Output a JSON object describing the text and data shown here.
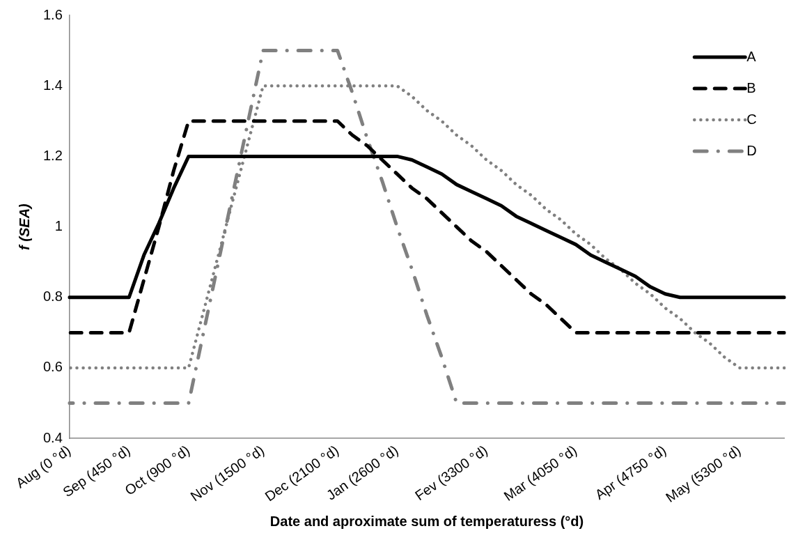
{
  "chart_data": {
    "type": "line",
    "xlabel": "Date and aproximate sum of temperaturess (°d)",
    "ylabel": "f (SEA)",
    "categories": [
      "Aug (0 °d)",
      null,
      null,
      null,
      "Sep (450 °d)",
      null,
      null,
      null,
      "Oct (900 °d)",
      null,
      null,
      null,
      null,
      "Nov (1500 °d)",
      null,
      null,
      null,
      null,
      "Dec (2100 °d)",
      null,
      null,
      null,
      "Jan (2600 °d)",
      null,
      null,
      null,
      null,
      null,
      "Fev (3300 °d)",
      null,
      null,
      null,
      null,
      null,
      "Mar (4050 °d)",
      null,
      null,
      null,
      null,
      null,
      "Apr (4750 °d)",
      null,
      null,
      null,
      null,
      "May (5300 °d)",
      null,
      null,
      null
    ],
    "series": [
      {
        "name": "A",
        "color": "#000000",
        "line_style": "solid",
        "values": [
          0.8,
          0.8,
          0.8,
          0.8,
          0.8,
          0.92,
          1.01,
          1.11,
          1.2,
          1.2,
          1.2,
          1.2,
          1.2,
          1.2,
          1.2,
          1.2,
          1.2,
          1.2,
          1.2,
          1.2,
          1.2,
          1.2,
          1.2,
          1.19,
          1.17,
          1.15,
          1.12,
          1.1,
          1.08,
          1.06,
          1.03,
          1.01,
          0.99,
          0.97,
          0.95,
          0.92,
          0.9,
          0.88,
          0.86,
          0.83,
          0.81,
          0.8,
          0.8,
          0.8,
          0.8,
          0.8,
          0.8,
          0.8,
          0.8
        ]
      },
      {
        "name": "B",
        "color": "#000000",
        "line_style": "dashed",
        "values": [
          0.7,
          0.7,
          0.7,
          0.7,
          0.7,
          0.85,
          1.0,
          1.16,
          1.3,
          1.3,
          1.3,
          1.3,
          1.3,
          1.3,
          1.3,
          1.3,
          1.3,
          1.3,
          1.3,
          1.26,
          1.23,
          1.19,
          1.15,
          1.11,
          1.08,
          1.04,
          1.0,
          0.96,
          0.93,
          0.89,
          0.85,
          0.81,
          0.78,
          0.74,
          0.7,
          0.7,
          0.7,
          0.7,
          0.7,
          0.7,
          0.7,
          0.7,
          0.7,
          0.7,
          0.7,
          0.7,
          0.7,
          0.7,
          0.7
        ]
      },
      {
        "name": "C",
        "color": "#808080",
        "line_style": "dotted",
        "values": [
          0.6,
          0.6,
          0.6,
          0.6,
          0.6,
          0.6,
          0.6,
          0.6,
          0.6,
          0.76,
          0.92,
          1.08,
          1.24,
          1.4,
          1.4,
          1.4,
          1.4,
          1.4,
          1.4,
          1.4,
          1.4,
          1.4,
          1.4,
          1.37,
          1.33,
          1.3,
          1.26,
          1.23,
          1.19,
          1.16,
          1.12,
          1.09,
          1.05,
          1.02,
          0.98,
          0.95,
          0.91,
          0.88,
          0.84,
          0.81,
          0.77,
          0.74,
          0.7,
          0.67,
          0.63,
          0.6,
          0.6,
          0.6,
          0.6
        ]
      },
      {
        "name": "D",
        "color": "#808080",
        "line_style": "dashdot",
        "values": [
          0.5,
          0.5,
          0.5,
          0.5,
          0.5,
          0.5,
          0.5,
          0.5,
          0.5,
          0.7,
          0.9,
          1.1,
          1.3,
          1.5,
          1.5,
          1.5,
          1.5,
          1.5,
          1.5,
          1.38,
          1.25,
          1.13,
          1.0,
          0.88,
          0.75,
          0.63,
          0.5,
          0.5,
          0.5,
          0.5,
          0.5,
          0.5,
          0.5,
          0.5,
          0.5,
          0.5,
          0.5,
          0.5,
          0.5,
          0.5,
          0.5,
          0.5,
          0.5,
          0.5,
          0.5,
          0.5,
          0.5,
          0.5,
          0.5
        ]
      }
    ],
    "ylim": [
      0.4,
      1.6
    ],
    "yticks": [
      0.4,
      0.6,
      0.8,
      1,
      1.2,
      1.4,
      1.6
    ],
    "legend": "top right",
    "marker": "none"
  }
}
